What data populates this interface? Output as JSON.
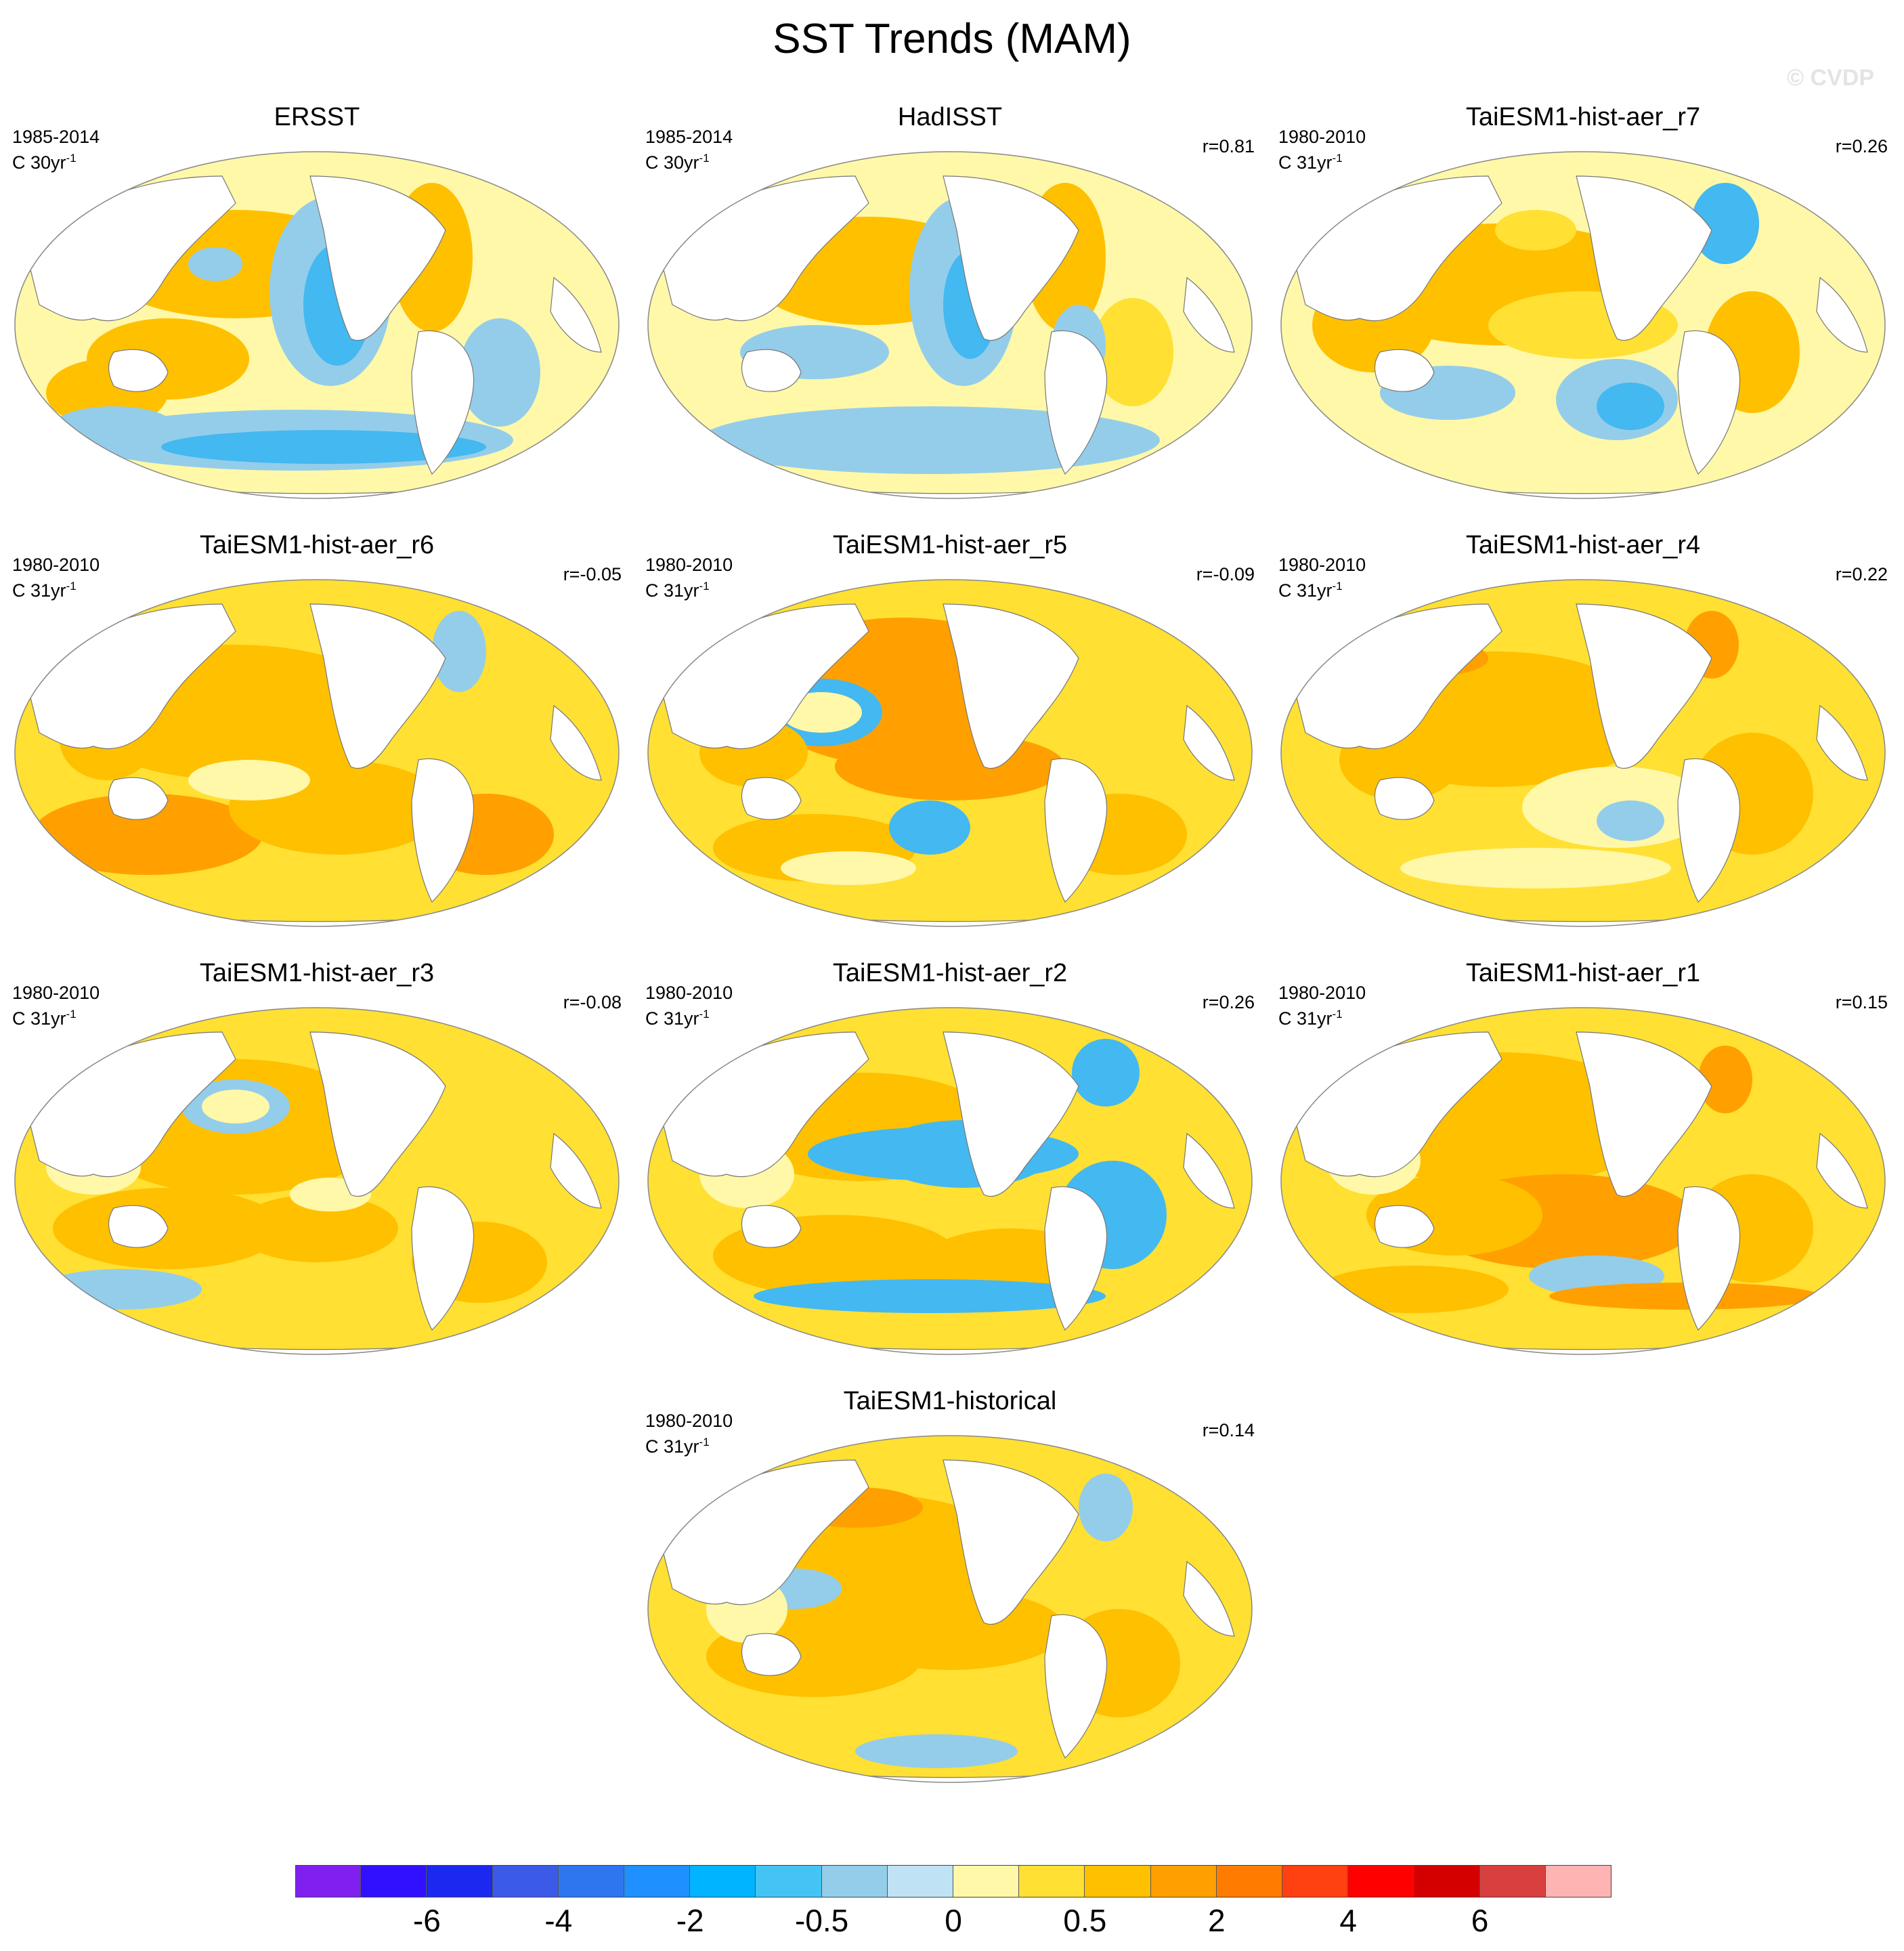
{
  "figure": {
    "title": "SST Trends (MAM)",
    "watermark": "© CVDP"
  },
  "panels": [
    {
      "title": "ERSST",
      "period": "1985-2014",
      "units_base": "C 30yr",
      "units_exp": "-1",
      "corr": "",
      "scheme": "obs1",
      "palette": [
        "#fff8a8",
        "#ffe033",
        "#ffc000",
        "#94cdea",
        "#44b8f0"
      ]
    },
    {
      "title": "HadISST",
      "period": "1985-2014",
      "units_base": "C 30yr",
      "units_exp": "-1",
      "corr": "r=0.81",
      "scheme": "obs2",
      "palette": [
        "#fff8a8",
        "#ffe033",
        "#ffc000",
        "#94cdea",
        "#44b8f0"
      ]
    },
    {
      "title": "TaiESM1-hist-aer_r7",
      "period": "1980-2010",
      "units_base": "C 31yr",
      "units_exp": "-1",
      "corr": "r=0.26",
      "scheme": "m1",
      "palette": [
        "#fff8a8",
        "#ffe033",
        "#ffc000",
        "#94cdea",
        "#44b8f0"
      ]
    },
    {
      "title": "TaiESM1-hist-aer_r6",
      "period": "1980-2010",
      "units_base": "C 31yr",
      "units_exp": "-1",
      "corr": "r=-0.05",
      "scheme": "m2",
      "palette": [
        "#fff8a8",
        "#ffe033",
        "#ffc000",
        "#ffa000",
        "#94cdea"
      ]
    },
    {
      "title": "TaiESM1-hist-aer_r5",
      "period": "1980-2010",
      "units_base": "C 31yr",
      "units_exp": "-1",
      "corr": "r=-0.09",
      "scheme": "m3",
      "palette": [
        "#fff8a8",
        "#ffe033",
        "#ffc000",
        "#ffa000",
        "#44b8f0"
      ]
    },
    {
      "title": "TaiESM1-hist-aer_r4",
      "period": "1980-2010",
      "units_base": "C 31yr",
      "units_exp": "-1",
      "corr": "r=0.22",
      "scheme": "m4",
      "palette": [
        "#fff8a8",
        "#ffe033",
        "#ffc000",
        "#ffa000",
        "#94cdea"
      ]
    },
    {
      "title": "TaiESM1-hist-aer_r3",
      "period": "1980-2010",
      "units_base": "C 31yr",
      "units_exp": "-1",
      "corr": "r=-0.08",
      "scheme": "m5",
      "palette": [
        "#fff8a8",
        "#ffe033",
        "#ffc000",
        "#ffa000",
        "#94cdea"
      ]
    },
    {
      "title": "TaiESM1-hist-aer_r2",
      "period": "1980-2010",
      "units_base": "C 31yr",
      "units_exp": "-1",
      "corr": "r=0.26",
      "scheme": "m6",
      "palette": [
        "#fff8a8",
        "#ffe033",
        "#ffc000",
        "#94cdea",
        "#44b8f0"
      ]
    },
    {
      "title": "TaiESM1-hist-aer_r1",
      "period": "1980-2010",
      "units_base": "C 31yr",
      "units_exp": "-1",
      "corr": "r=0.15",
      "scheme": "m7",
      "palette": [
        "#fff8a8",
        "#ffe033",
        "#ffc000",
        "#ffa000",
        "#94cdea"
      ]
    },
    {
      "title": "TaiESM1-historical",
      "period": "1980-2010",
      "units_base": "C 31yr",
      "units_exp": "-1",
      "corr": "r=0.14",
      "scheme": "m8",
      "palette": [
        "#fff8a8",
        "#ffe033",
        "#ffc000",
        "#ffa000",
        "#94cdea"
      ]
    }
  ],
  "colorbar": {
    "colors": [
      "#8020f0",
      "#3010ff",
      "#1a28f0",
      "#3c5ae8",
      "#2e76f0",
      "#1e90ff",
      "#00b4ff",
      "#44c4f4",
      "#94cdea",
      "#bfe2f4",
      "#fff8a8",
      "#ffe033",
      "#ffc000",
      "#ffa000",
      "#ff7c00",
      "#ff4010",
      "#ff0000",
      "#d40000",
      "#d84040",
      "#ffb4b4"
    ],
    "labels": [
      "-6",
      "-4",
      "-2",
      "-0.5",
      "0",
      "0.5",
      "2",
      "4",
      "6"
    ]
  }
}
